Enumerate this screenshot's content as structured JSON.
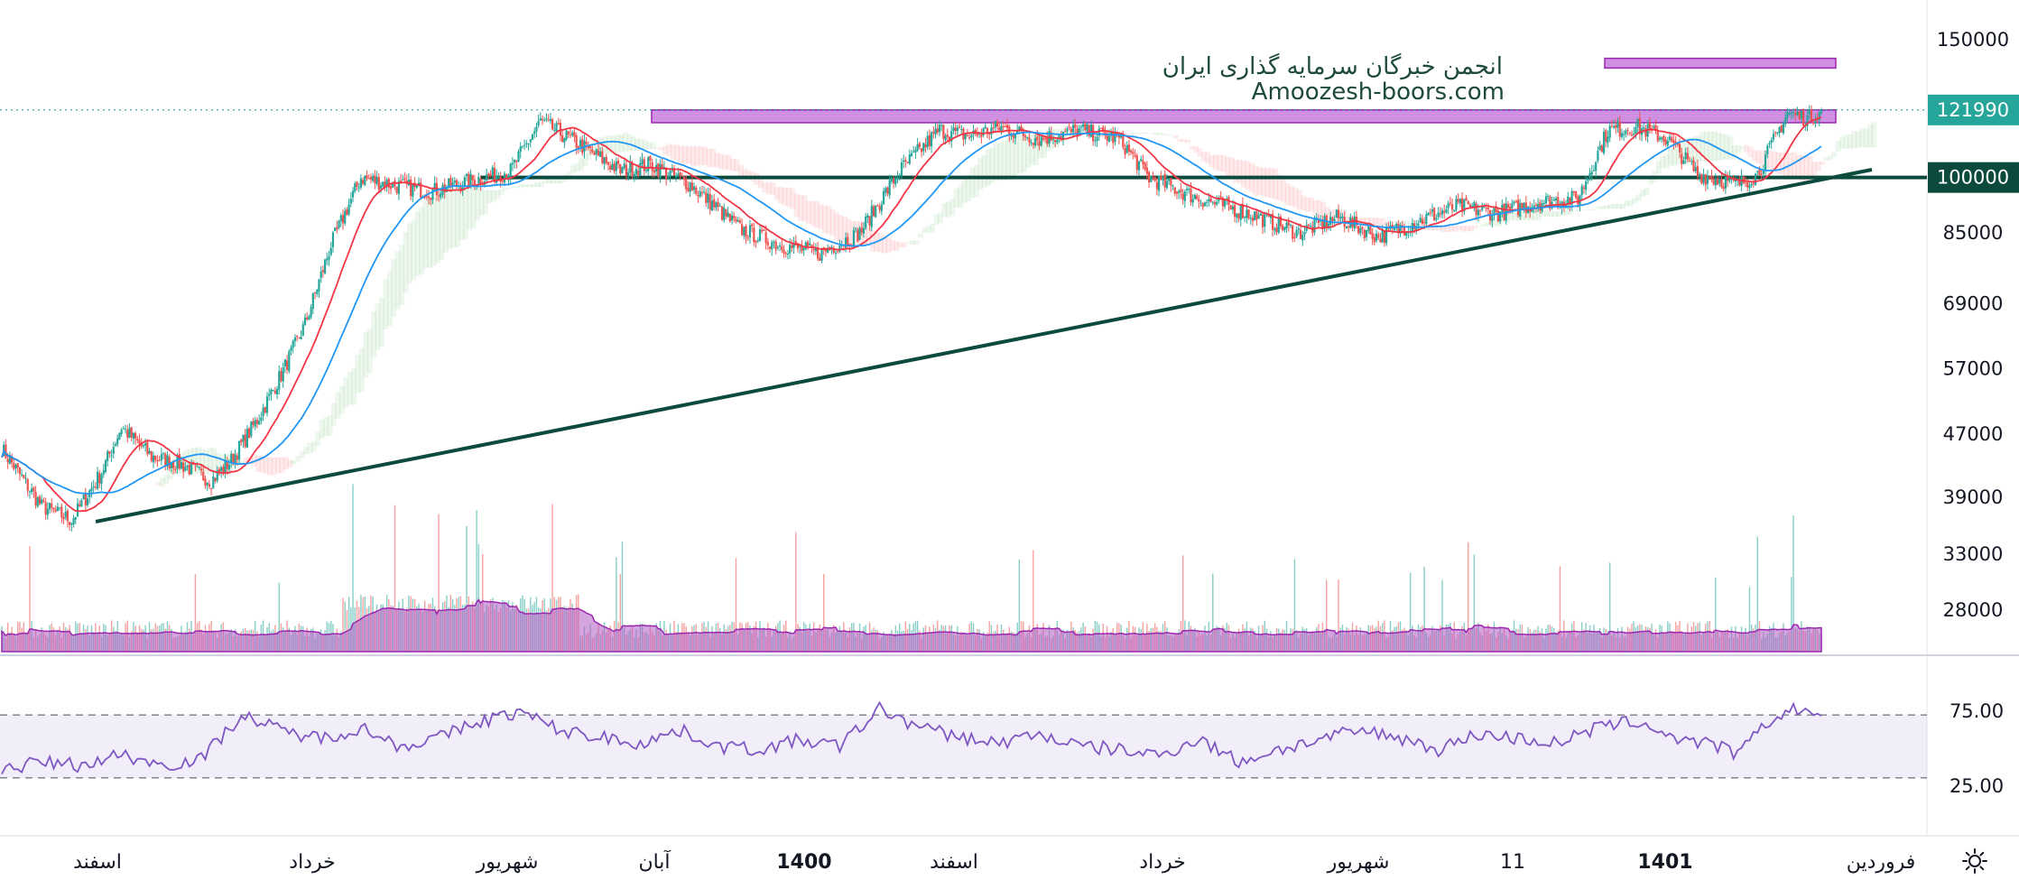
{
  "watermark": {
    "line1": "انجمن خبرگان سرمایه گذاری ایران",
    "line2": "Amoozesh-boors.com"
  },
  "colors": {
    "up": "#26a69a",
    "down": "#ef5350",
    "ma_fast": "#f23645",
    "ma_slow": "#2196f3",
    "trendline": "#0b4a3c",
    "zone": "#c77ddf",
    "volume_area": "#b35bc4",
    "rsi": "#7e57c2",
    "price_tag": "#26a69a",
    "level_tag": "#0b4a3c"
  },
  "chart_data": {
    "type": "candlestick",
    "scale": "log",
    "price_axis": {
      "ticks": [
        150000,
        121990,
        100000,
        85000,
        69000,
        57000,
        47000,
        39000,
        33000,
        28000
      ],
      "tick_labels": [
        "150000",
        "121990",
        "100000",
        "85000",
        "69000",
        "57000",
        "47000",
        "39000",
        "33000",
        "28000"
      ]
    },
    "last_price": 121990,
    "last_price_label": "121990",
    "key_level": 100000,
    "key_level_label": "100000",
    "resistance_zone": [
      117500,
      122000
    ],
    "target_zone": [
      138000,
      142000
    ],
    "time_axis": {
      "labels": [
        "اسفند",
        "خرداد",
        "شهریور",
        "آبان",
        "1400",
        "اسفند",
        "خرداد",
        "شهریور",
        "11",
        "1401",
        "فروردین"
      ],
      "bold": [
        false,
        false,
        false,
        false,
        true,
        false,
        false,
        false,
        false,
        true,
        false
      ]
    },
    "price_path": [
      [
        0,
        45000
      ],
      [
        20,
        38000
      ],
      [
        35,
        36500
      ],
      [
        50,
        42000
      ],
      [
        60,
        48000
      ],
      [
        75,
        44000
      ],
      [
        90,
        43000
      ],
      [
        105,
        41000
      ],
      [
        115,
        43500
      ],
      [
        128,
        49000
      ],
      [
        140,
        56000
      ],
      [
        152,
        65000
      ],
      [
        165,
        82000
      ],
      [
        180,
        100000
      ],
      [
        195,
        98000
      ],
      [
        215,
        96000
      ],
      [
        235,
        99000
      ],
      [
        255,
        102000
      ],
      [
        270,
        118000
      ],
      [
        290,
        110000
      ],
      [
        310,
        102000
      ],
      [
        325,
        104000
      ],
      [
        345,
        98000
      ],
      [
        370,
        86000
      ],
      [
        390,
        82000
      ],
      [
        410,
        80000
      ],
      [
        430,
        85000
      ],
      [
        450,
        102000
      ],
      [
        470,
        115000
      ],
      [
        485,
        113000
      ],
      [
        500,
        116000
      ],
      [
        520,
        112000
      ],
      [
        540,
        115000
      ],
      [
        560,
        112000
      ],
      [
        575,
        100000
      ],
      [
        600,
        94000
      ],
      [
        625,
        90000
      ],
      [
        650,
        85000
      ],
      [
        670,
        89000
      ],
      [
        690,
        84000
      ],
      [
        710,
        88000
      ],
      [
        730,
        92000
      ],
      [
        750,
        90000
      ],
      [
        770,
        93000
      ],
      [
        790,
        94000
      ],
      [
        805,
        115000
      ],
      [
        820,
        116000
      ],
      [
        835,
        112000
      ],
      [
        850,
        101000
      ],
      [
        870,
        98000
      ],
      [
        880,
        101000
      ],
      [
        895,
        121000
      ],
      [
        905,
        119000
      ],
      [
        912,
        121990
      ]
    ],
    "rsi": {
      "upper": 70,
      "lower": 30,
      "tick_labels": [
        "75.00",
        "25.00"
      ],
      "values": [
        [
          0,
          35
        ],
        [
          20,
          40
        ],
        [
          40,
          38
        ],
        [
          60,
          45
        ],
        [
          80,
          38
        ],
        [
          100,
          42
        ],
        [
          120,
          70
        ],
        [
          140,
          60
        ],
        [
          160,
          55
        ],
        [
          180,
          62
        ],
        [
          200,
          50
        ],
        [
          220,
          56
        ],
        [
          240,
          66
        ],
        [
          260,
          72
        ],
        [
          280,
          60
        ],
        [
          300,
          56
        ],
        [
          320,
          52
        ],
        [
          340,
          60
        ],
        [
          360,
          50
        ],
        [
          380,
          48
        ],
        [
          400,
          54
        ],
        [
          420,
          50
        ],
        [
          440,
          74
        ],
        [
          460,
          62
        ],
        [
          480,
          56
        ],
        [
          500,
          52
        ],
        [
          520,
          58
        ],
        [
          540,
          50
        ],
        [
          560,
          48
        ],
        [
          580,
          44
        ],
        [
          600,
          55
        ],
        [
          620,
          40
        ],
        [
          640,
          48
        ],
        [
          660,
          54
        ],
        [
          680,
          60
        ],
        [
          700,
          56
        ],
        [
          720,
          48
        ],
        [
          740,
          58
        ],
        [
          760,
          55
        ],
        [
          780,
          52
        ],
        [
          800,
          62
        ],
        [
          820,
          66
        ],
        [
          840,
          55
        ],
        [
          860,
          50
        ],
        [
          870,
          45
        ],
        [
          880,
          58
        ],
        [
          890,
          70
        ],
        [
          900,
          74
        ],
        [
          912,
          70
        ]
      ]
    }
  }
}
